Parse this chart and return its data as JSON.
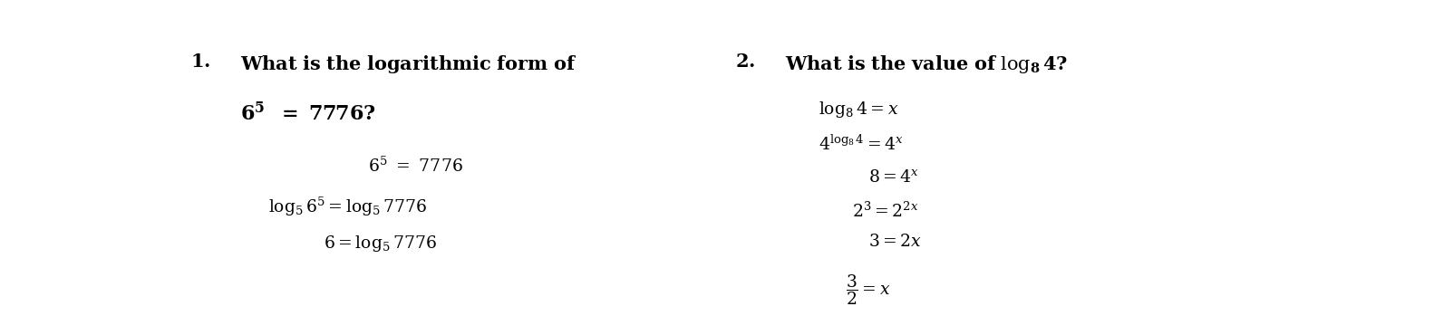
{
  "bg_color": "#ffffff",
  "figsize": [
    15.82,
    3.7
  ],
  "dpi": 100,
  "title_fontsize": 15,
  "body_fontsize": 13.5
}
